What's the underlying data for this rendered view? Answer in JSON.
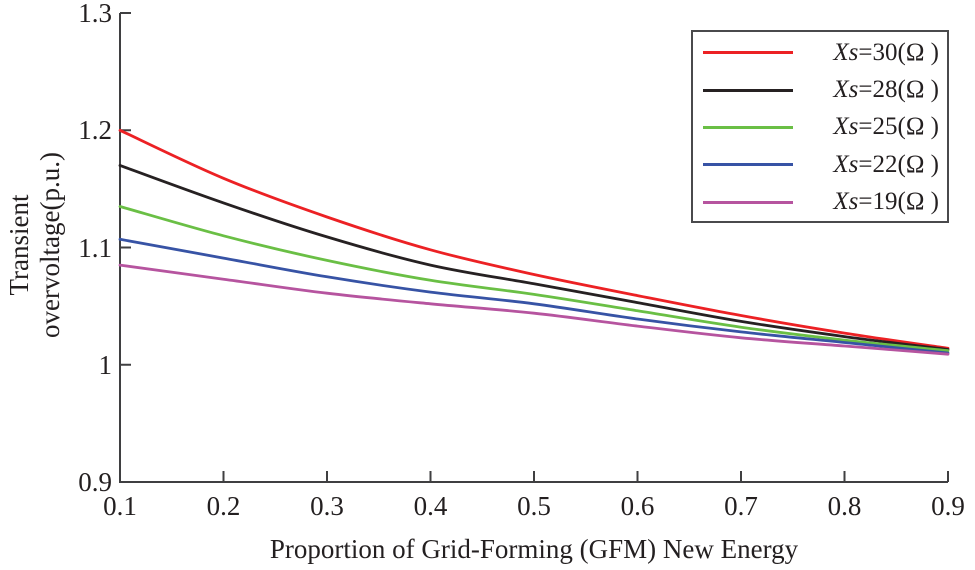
{
  "figure": {
    "background": "#ffffff",
    "axis_color": "#3f3f41",
    "text_color": "#231f20",
    "legend_border_color": "#4a4a4c"
  },
  "chart_data": {
    "type": "line",
    "title": "",
    "xlabel": "Proportion of Grid-Forming (GFM) New Energy",
    "ylabel_line1": "Transient",
    "ylabel_line2": "overvoltage(p.u.)",
    "xlim": [
      0.1,
      0.9
    ],
    "ylim": [
      0.9,
      1.3
    ],
    "grid": false,
    "legend_position": "top-right",
    "xticks": [
      0.1,
      0.2,
      0.3,
      0.4,
      0.5,
      0.6,
      0.7,
      0.8,
      0.9
    ],
    "xtick_labels": [
      "0.1",
      "0.2",
      "0.3",
      "0.4",
      "0.5",
      "0.6",
      "0.7",
      "0.8",
      "0.9"
    ],
    "yticks": [
      0.9,
      1.0,
      1.1,
      1.2,
      1.3
    ],
    "ytick_labels": [
      "0.9",
      "1",
      "1.1",
      "1.2",
      "1.3"
    ],
    "x": [
      0.1,
      0.2,
      0.3,
      0.4,
      0.5,
      0.6,
      0.7,
      0.8,
      0.9
    ],
    "series": [
      {
        "label": "Xs=30(Ω )",
        "label_var": "Xs",
        "label_rest": "=30(Ω )",
        "color": "#ec2124",
        "values": [
          1.2,
          1.159,
          1.126,
          1.098,
          1.077,
          1.059,
          1.042,
          1.027,
          1.014
        ]
      },
      {
        "label": "Xs=28(Ω )",
        "label_var": "Xs",
        "label_rest": "=28(Ω )",
        "color": "#262122",
        "values": [
          1.17,
          1.138,
          1.109,
          1.085,
          1.069,
          1.053,
          1.037,
          1.024,
          1.013
        ]
      },
      {
        "label": "Xs=25(Ω )",
        "label_var": "Xs",
        "label_rest": "=25(Ω )",
        "color": "#6abf45",
        "values": [
          1.135,
          1.11,
          1.089,
          1.072,
          1.06,
          1.046,
          1.032,
          1.021,
          1.012
        ]
      },
      {
        "label": "Xs=22(Ω )",
        "label_var": "Xs",
        "label_rest": "=22(Ω )",
        "color": "#3753a5",
        "values": [
          1.107,
          1.091,
          1.075,
          1.062,
          1.052,
          1.039,
          1.028,
          1.019,
          1.01
        ]
      },
      {
        "label": "Xs=19(Ω )",
        "label_var": "Xs",
        "label_rest": "=19(Ω )",
        "color": "#b6549f",
        "values": [
          1.085,
          1.073,
          1.061,
          1.052,
          1.044,
          1.033,
          1.023,
          1.016,
          1.009
        ]
      }
    ]
  }
}
